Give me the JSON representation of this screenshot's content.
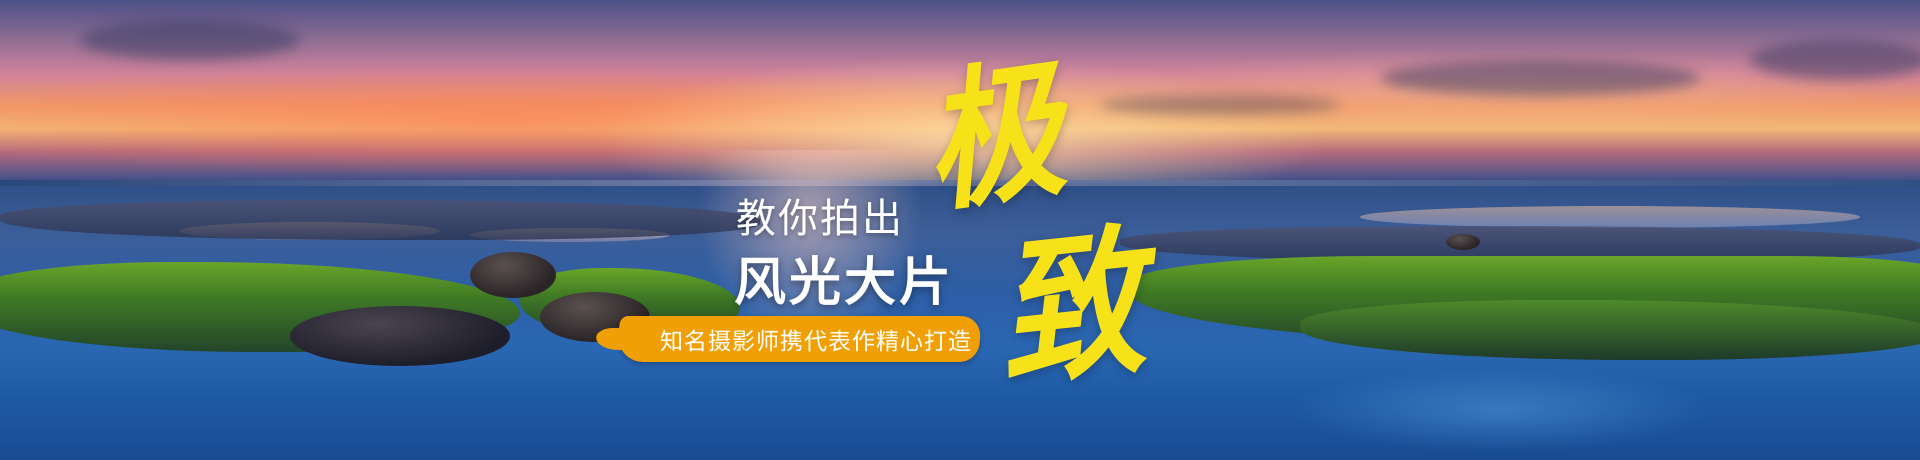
{
  "banner": {
    "headline_small": "教你拍出",
    "headline_big": "风光大片",
    "tagline": "知名摄影师携代表作精心打造",
    "calligraphy": [
      "极",
      "致"
    ]
  },
  "colors": {
    "accent_yellow": "#f7e21a",
    "tagline_orange": "#f0a006",
    "text_white": "#ffffff"
  }
}
